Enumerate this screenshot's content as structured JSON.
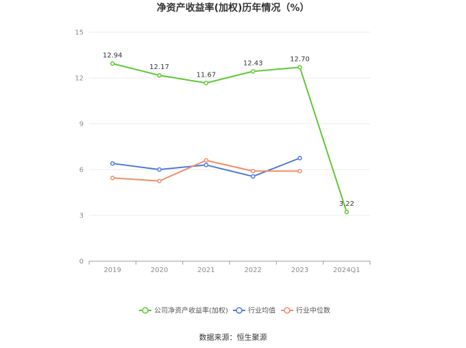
{
  "chart_data": {
    "type": "line",
    "title": "净资产收益率(加权)历年情况（%）",
    "categories": [
      "2019",
      "2020",
      "2021",
      "2022",
      "2023",
      "2024Q1"
    ],
    "ylim": [
      0,
      15
    ],
    "yticks": [
      0,
      3,
      6,
      9,
      12,
      15
    ],
    "grid": true,
    "legend_position": "bottom",
    "series": [
      {
        "name": "公司净资产收益率(加权)",
        "color": "#5bc832",
        "values": [
          12.94,
          12.17,
          11.67,
          12.43,
          12.7,
          3.22
        ],
        "labels": [
          "12.94",
          "12.17",
          "11.67",
          "12.43",
          "12.70",
          "3.22"
        ]
      },
      {
        "name": "行业均值",
        "color": "#4a78d8",
        "values": [
          6.4,
          6.0,
          6.3,
          5.55,
          6.75,
          null
        ]
      },
      {
        "name": "行业中位数",
        "color": "#f08a6a",
        "values": [
          5.45,
          5.25,
          6.6,
          5.9,
          5.9,
          null
        ]
      }
    ],
    "source": "数据来源：恒生聚源"
  }
}
